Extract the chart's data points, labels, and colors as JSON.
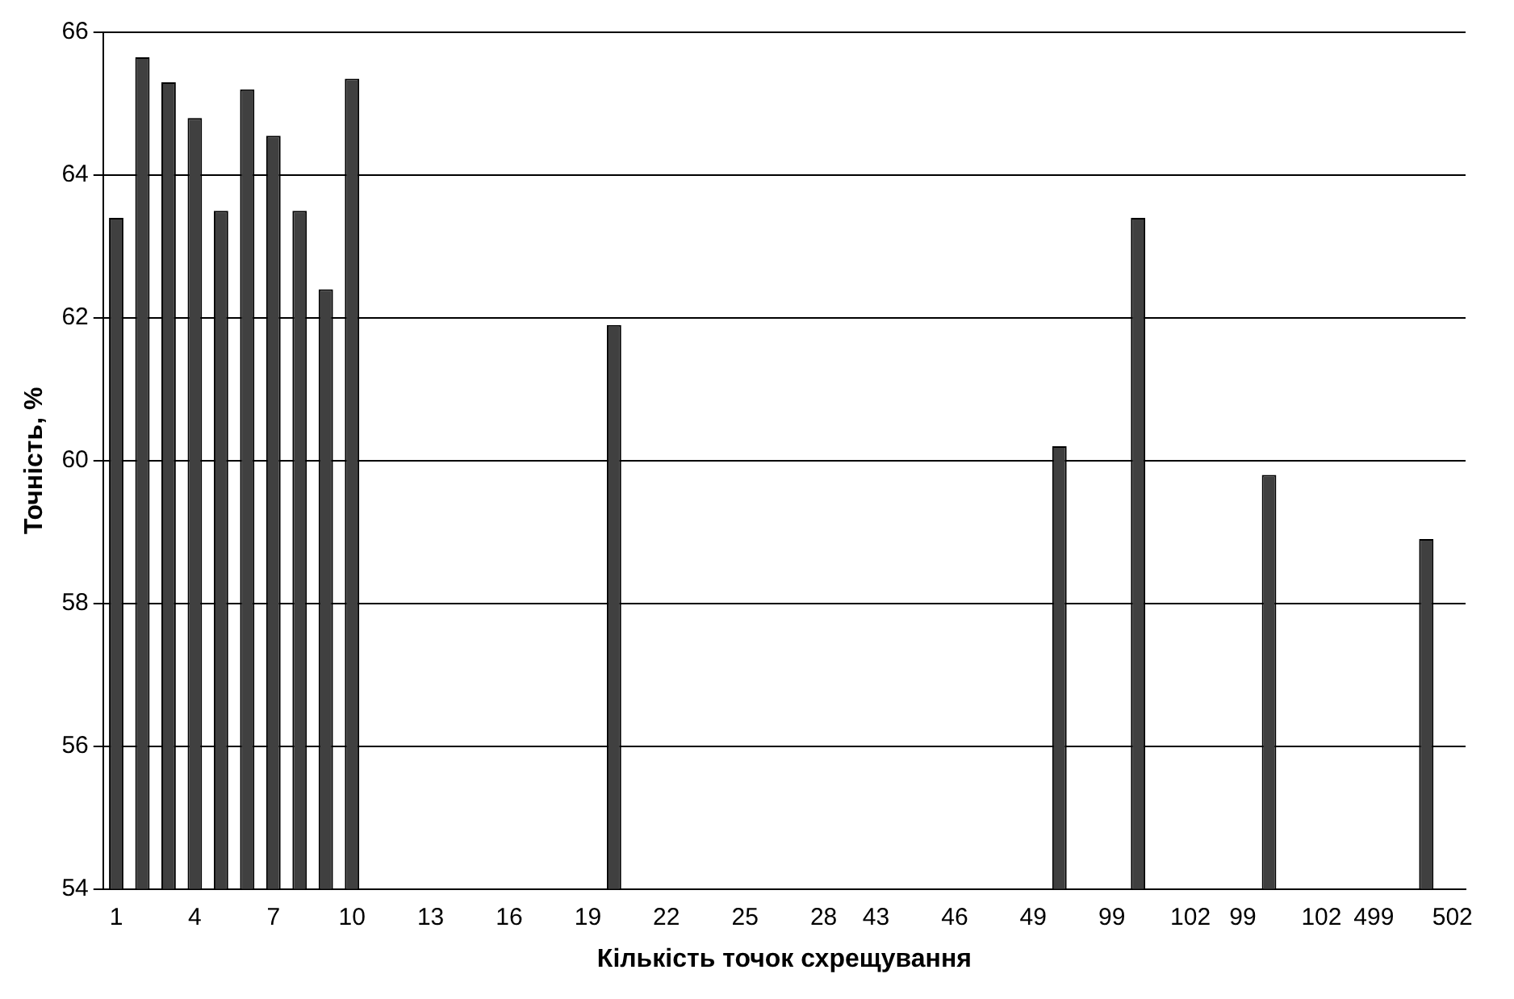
{
  "chart_data": {
    "type": "bar",
    "xlabel": "Кількість точок схрещування",
    "ylabel": "Точність, %",
    "categories": [
      "1",
      null,
      null,
      "4",
      null,
      null,
      "7",
      null,
      null,
      "10",
      null,
      null,
      "13",
      null,
      null,
      "16",
      null,
      null,
      "19",
      null,
      null,
      "22",
      null,
      null,
      "25",
      null,
      null,
      "28",
      null,
      "43",
      null,
      null,
      "46",
      null,
      null,
      "49",
      null,
      null,
      "99",
      null,
      null,
      "102",
      null,
      "99",
      null,
      null,
      "102",
      null,
      "499",
      null,
      null,
      "502"
    ],
    "series": [
      {
        "color": "#404040",
        "values": [
          63.4,
          65.65,
          65.3,
          64.8,
          63.5,
          65.2,
          64.55,
          63.5,
          62.4,
          65.35,
          null,
          null,
          null,
          null,
          null,
          null,
          null,
          null,
          null,
          61.9,
          null,
          null,
          null,
          null,
          null,
          null,
          null,
          null,
          null,
          null,
          null,
          null,
          null,
          null,
          null,
          null,
          60.2,
          null,
          null,
          63.4,
          null,
          null,
          null,
          null,
          59.8,
          null,
          null,
          null,
          null,
          null,
          58.9,
          null
        ]
      }
    ],
    "ylim": [
      54,
      66
    ],
    "yticks": [
      54,
      56,
      58,
      60,
      62,
      64,
      66
    ],
    "grid": "y",
    "legend": false
  }
}
